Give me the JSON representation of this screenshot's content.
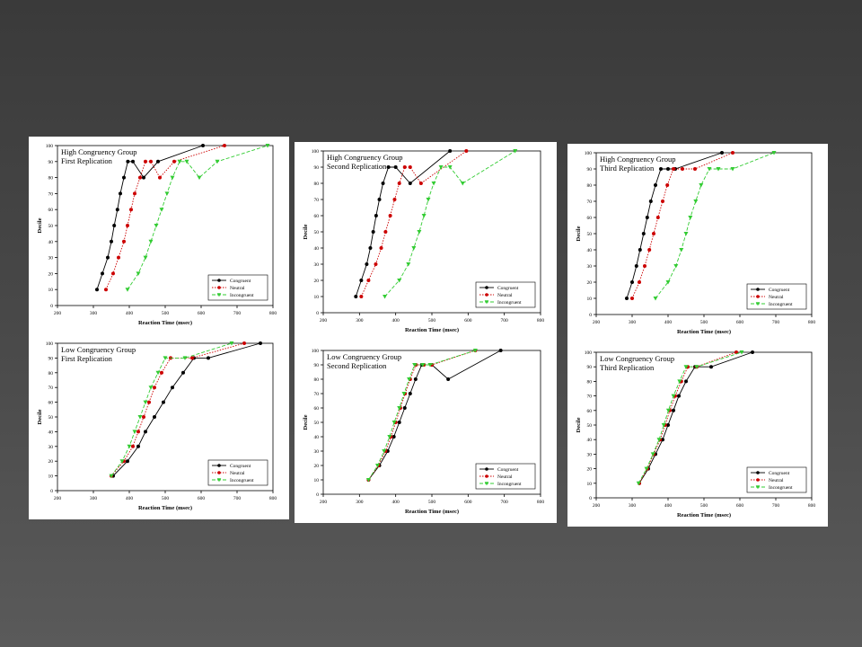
{
  "colors": {
    "congruent": "#000000",
    "neutral": "#cc0000",
    "incongruent": "#33cc33"
  },
  "chart_data": [
    {
      "type": "line",
      "title": "High Congruency Group",
      "subtitle": "First Replication",
      "xlabel": "Reaction Time (msec)",
      "ylabel": "Decile",
      "xlim": [
        200,
        800
      ],
      "ylim": [
        0,
        100
      ],
      "xticks": [
        "200",
        "300",
        "400",
        "500",
        "600",
        "700",
        "800"
      ],
      "yticks": [
        "0",
        "10",
        "20",
        "30",
        "40",
        "50",
        "60",
        "70",
        "80",
        "90",
        "100"
      ],
      "legend": "bottom-right",
      "series": [
        {
          "name": "Congruent",
          "x": [
            310,
            325,
            340,
            350,
            358,
            367,
            375,
            385,
            396,
            410,
            440,
            480,
            605
          ],
          "y": [
            10,
            20,
            30,
            40,
            50,
            60,
            70,
            80,
            90,
            90,
            80,
            90,
            100
          ]
        },
        {
          "name": "Neutral",
          "x": [
            335,
            355,
            370,
            385,
            395,
            405,
            415,
            430,
            445,
            460,
            485,
            525,
            665
          ],
          "y": [
            10,
            20,
            30,
            40,
            50,
            60,
            70,
            80,
            90,
            90,
            80,
            90,
            100
          ]
        },
        {
          "name": "Incongruent",
          "x": [
            395,
            425,
            445,
            460,
            475,
            490,
            505,
            520,
            540,
            560,
            595,
            645,
            785
          ],
          "y": [
            10,
            20,
            30,
            40,
            50,
            60,
            70,
            80,
            90,
            90,
            80,
            90,
            100
          ]
        }
      ]
    },
    {
      "type": "line",
      "title": "High Congruency Group",
      "subtitle": "Second Replication",
      "xlabel": "Reaction Time (msec)",
      "ylabel": "Decile",
      "xlim": [
        200,
        800
      ],
      "ylim": [
        0,
        100
      ],
      "xticks": [
        "200",
        "300",
        "400",
        "500",
        "600",
        "700",
        "800"
      ],
      "yticks": [
        "0",
        "10",
        "20",
        "30",
        "40",
        "50",
        "60",
        "70",
        "80",
        "90",
        "100"
      ],
      "legend": "bottom-right",
      "series": [
        {
          "name": "Congruent",
          "x": [
            290,
            305,
            320,
            330,
            338,
            346,
            355,
            365,
            380,
            400,
            440,
            550
          ],
          "y": [
            10,
            20,
            30,
            40,
            50,
            60,
            70,
            80,
            90,
            90,
            80,
            100
          ]
        },
        {
          "name": "Neutral",
          "x": [
            305,
            325,
            345,
            360,
            372,
            385,
            397,
            410,
            425,
            440,
            470,
            595
          ],
          "y": [
            10,
            20,
            30,
            40,
            50,
            60,
            70,
            80,
            90,
            90,
            80,
            100
          ]
        },
        {
          "name": "Incongruent",
          "x": [
            370,
            410,
            435,
            450,
            465,
            478,
            490,
            505,
            525,
            550,
            585,
            730
          ],
          "y": [
            10,
            20,
            30,
            40,
            50,
            60,
            70,
            80,
            90,
            90,
            80,
            100
          ]
        }
      ]
    },
    {
      "type": "line",
      "title": "High Congruency Group",
      "subtitle": "Third Replication",
      "xlabel": "Reaction Time (msec)",
      "ylabel": "Decile",
      "xlim": [
        200,
        800
      ],
      "ylim": [
        0,
        100
      ],
      "xticks": [
        "200",
        "300",
        "400",
        "500",
        "600",
        "700",
        "800"
      ],
      "yticks": [
        "0",
        "10",
        "20",
        "30",
        "40",
        "50",
        "60",
        "70",
        "80",
        "90",
        "100"
      ],
      "legend": "bottom-right",
      "series": [
        {
          "name": "Congruent",
          "x": [
            285,
            300,
            312,
            322,
            332,
            342,
            352,
            365,
            380,
            400,
            420,
            550
          ],
          "y": [
            10,
            20,
            30,
            40,
            50,
            60,
            70,
            80,
            90,
            90,
            90,
            100
          ]
        },
        {
          "name": "Neutral",
          "x": [
            300,
            320,
            335,
            348,
            360,
            372,
            385,
            398,
            415,
            440,
            475,
            580
          ],
          "y": [
            10,
            20,
            30,
            40,
            50,
            60,
            70,
            80,
            90,
            90,
            90,
            100
          ]
        },
        {
          "name": "Incongruent",
          "x": [
            365,
            400,
            422,
            437,
            450,
            462,
            477,
            492,
            515,
            540,
            580,
            695
          ],
          "y": [
            10,
            20,
            30,
            40,
            50,
            60,
            70,
            80,
            90,
            90,
            90,
            100
          ]
        }
      ]
    },
    {
      "type": "line",
      "title": "Low Congruency Group",
      "subtitle": "First Replication",
      "xlabel": "Reaction Time (msec)",
      "ylabel": "Decile",
      "xlim": [
        200,
        800
      ],
      "ylim": [
        0,
        100
      ],
      "xticks": [
        "200",
        "300",
        "400",
        "500",
        "600",
        "700",
        "800"
      ],
      "yticks": [
        "0",
        "10",
        "20",
        "30",
        "40",
        "50",
        "60",
        "70",
        "80",
        "90",
        "100"
      ],
      "legend": "bottom-right",
      "series": [
        {
          "name": "Congruent",
          "x": [
            355,
            395,
            425,
            445,
            470,
            495,
            520,
            550,
            580,
            620,
            765
          ],
          "y": [
            10,
            20,
            30,
            40,
            50,
            60,
            70,
            80,
            90,
            90,
            100
          ]
        },
        {
          "name": "Neutral",
          "x": [
            350,
            385,
            410,
            425,
            440,
            455,
            470,
            490,
            515,
            575,
            720
          ],
          "y": [
            10,
            20,
            30,
            40,
            50,
            60,
            70,
            80,
            90,
            90,
            100
          ]
        },
        {
          "name": "Incongruent",
          "x": [
            350,
            380,
            400,
            415,
            430,
            445,
            460,
            480,
            500,
            555,
            685
          ],
          "y": [
            10,
            20,
            30,
            40,
            50,
            60,
            70,
            80,
            90,
            90,
            100
          ]
        }
      ]
    },
    {
      "type": "line",
      "title": "Low Congruency Group",
      "subtitle": "Second Replication",
      "xlabel": "Reaction Time (msec)",
      "ylabel": "Decile",
      "xlim": [
        200,
        800
      ],
      "ylim": [
        0,
        100
      ],
      "xticks": [
        "200",
        "300",
        "400",
        "500",
        "600",
        "700",
        "800"
      ],
      "yticks": [
        "0",
        "10",
        "20",
        "30",
        "40",
        "50",
        "60",
        "70",
        "80",
        "90",
        "100"
      ],
      "legend": "bottom-right",
      "series": [
        {
          "name": "Congruent",
          "x": [
            325,
            355,
            378,
            395,
            410,
            425,
            440,
            455,
            472,
            500,
            545,
            690
          ],
          "y": [
            10,
            20,
            30,
            40,
            50,
            60,
            70,
            80,
            90,
            90,
            80,
            100
          ]
        },
        {
          "name": "Neutral",
          "x": [
            325,
            352,
            372,
            387,
            400,
            413,
            426,
            440,
            456,
            478,
            500,
            620
          ],
          "y": [
            10,
            20,
            30,
            40,
            50,
            60,
            70,
            80,
            90,
            90,
            90,
            100
          ]
        },
        {
          "name": "Incongruent",
          "x": [
            325,
            350,
            368,
            383,
            396,
            410,
            423,
            437,
            452,
            475,
            495,
            620
          ],
          "y": [
            10,
            20,
            30,
            40,
            50,
            60,
            70,
            80,
            90,
            90,
            90,
            100
          ]
        }
      ]
    },
    {
      "type": "line",
      "title": "Low Congruency Group",
      "subtitle": "Third Replication",
      "xlabel": "Reaction Time (msec)",
      "ylabel": "Decile",
      "xlim": [
        200,
        800
      ],
      "ylim": [
        0,
        100
      ],
      "xticks": [
        "200",
        "300",
        "400",
        "500",
        "600",
        "700",
        "800"
      ],
      "yticks": [
        "0",
        "10",
        "20",
        "30",
        "40",
        "50",
        "60",
        "70",
        "80",
        "90",
        "100"
      ],
      "legend": "bottom-right",
      "series": [
        {
          "name": "Congruent",
          "x": [
            320,
            345,
            365,
            385,
            400,
            415,
            430,
            450,
            475,
            520,
            635
          ],
          "y": [
            10,
            20,
            30,
            40,
            50,
            60,
            70,
            80,
            90,
            90,
            100
          ]
        },
        {
          "name": "Neutral",
          "x": [
            320,
            342,
            360,
            378,
            392,
            405,
            420,
            437,
            455,
            480,
            590
          ],
          "y": [
            10,
            20,
            30,
            40,
            50,
            60,
            70,
            80,
            90,
            90,
            100
          ]
        },
        {
          "name": "Incongruent",
          "x": [
            318,
            340,
            358,
            375,
            388,
            401,
            415,
            432,
            450,
            480,
            605
          ],
          "y": [
            10,
            20,
            30,
            40,
            50,
            60,
            70,
            80,
            90,
            90,
            100
          ]
        }
      ]
    }
  ]
}
